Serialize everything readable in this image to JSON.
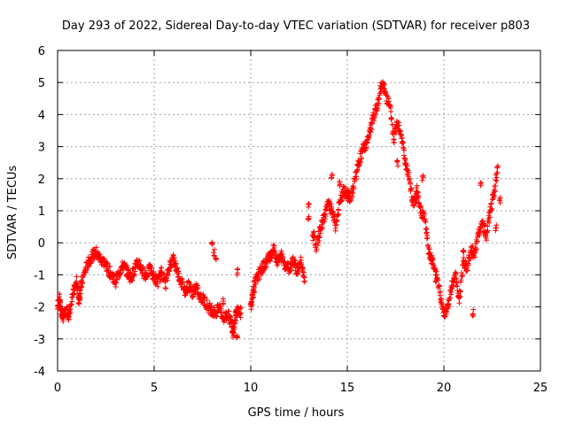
{
  "chart_data": {
    "type": "scatter",
    "title": "Day 293 of 2022, Sidereal Day-to-day VTEC variation (SDTVAR) for receiver p803",
    "xlabel": "GPS time / hours",
    "ylabel": "SDTVAR / TECUs",
    "xlim": [
      0,
      25
    ],
    "ylim": [
      -4,
      6
    ],
    "xticks": [
      0,
      5,
      10,
      15,
      20,
      25
    ],
    "yticks": [
      -4,
      -3,
      -2,
      -1,
      0,
      1,
      2,
      3,
      4,
      5,
      6
    ],
    "grid": true,
    "marker": "plus",
    "series": [
      {
        "name": "p803",
        "color": "#ff0000",
        "trace": [
          [
            0.0,
            -2.0
          ],
          [
            0.1,
            -1.7
          ],
          [
            0.2,
            -2.2
          ],
          [
            0.3,
            -2.3
          ],
          [
            0.5,
            -2.1
          ],
          [
            0.6,
            -2.3
          ],
          [
            0.8,
            -1.6
          ],
          [
            1.0,
            -1.2
          ],
          [
            1.1,
            -1.8
          ],
          [
            1.2,
            -1.4
          ],
          [
            1.4,
            -0.9
          ],
          [
            1.6,
            -0.6
          ],
          [
            1.8,
            -0.4
          ],
          [
            2.0,
            -0.3
          ],
          [
            2.2,
            -0.5
          ],
          [
            2.4,
            -0.6
          ],
          [
            2.6,
            -0.8
          ],
          [
            2.8,
            -1.0
          ],
          [
            3.0,
            -1.2
          ],
          [
            3.2,
            -0.9
          ],
          [
            3.4,
            -0.7
          ],
          [
            3.6,
            -0.9
          ],
          [
            3.8,
            -1.1
          ],
          [
            4.0,
            -0.8
          ],
          [
            4.2,
            -0.6
          ],
          [
            4.4,
            -0.9
          ],
          [
            4.6,
            -1.0
          ],
          [
            4.8,
            -0.8
          ],
          [
            5.0,
            -1.1
          ],
          [
            5.2,
            -1.2
          ],
          [
            5.4,
            -0.9
          ],
          [
            5.6,
            -1.3
          ],
          [
            5.8,
            -0.7
          ],
          [
            6.0,
            -0.5
          ],
          [
            6.2,
            -0.9
          ],
          [
            6.4,
            -1.2
          ],
          [
            6.6,
            -1.5
          ],
          [
            6.8,
            -1.3
          ],
          [
            7.0,
            -1.6
          ],
          [
            7.2,
            -1.4
          ],
          [
            7.4,
            -1.7
          ],
          [
            7.6,
            -1.8
          ],
          [
            7.8,
            -2.0
          ],
          [
            8.0,
            -2.1
          ],
          [
            8.2,
            -2.2
          ],
          [
            8.4,
            -2.0
          ],
          [
            8.6,
            -2.4
          ],
          [
            8.8,
            -2.2
          ],
          [
            9.0,
            -2.5
          ],
          [
            9.1,
            -2.8
          ],
          [
            9.2,
            -2.3
          ],
          [
            9.3,
            -2.1
          ],
          [
            9.5,
            -2.2
          ],
          [
            10.0,
            -2.0
          ],
          [
            10.1,
            -1.6
          ],
          [
            10.2,
            -1.3
          ],
          [
            10.4,
            -1.0
          ],
          [
            10.6,
            -0.8
          ],
          [
            10.8,
            -0.6
          ],
          [
            11.0,
            -0.4
          ],
          [
            11.2,
            -0.2
          ],
          [
            11.4,
            -0.6
          ],
          [
            11.6,
            -0.4
          ],
          [
            11.8,
            -0.7
          ],
          [
            12.0,
            -0.8
          ],
          [
            12.2,
            -0.5
          ],
          [
            12.4,
            -0.9
          ],
          [
            12.6,
            -0.6
          ],
          [
            12.8,
            -1.2
          ],
          [
            13.2,
            0.3
          ],
          [
            13.4,
            -0.1
          ],
          [
            13.6,
            0.4
          ],
          [
            13.8,
            0.8
          ],
          [
            14.0,
            1.2
          ],
          [
            14.2,
            1.0
          ],
          [
            14.4,
            0.5
          ],
          [
            14.6,
            1.2
          ],
          [
            14.8,
            1.6
          ],
          [
            15.0,
            1.5
          ],
          [
            15.2,
            1.4
          ],
          [
            15.4,
            2.0
          ],
          [
            15.6,
            2.5
          ],
          [
            15.8,
            2.9
          ],
          [
            16.0,
            3.1
          ],
          [
            16.2,
            3.5
          ],
          [
            16.4,
            4.0
          ],
          [
            16.6,
            4.4
          ],
          [
            16.8,
            5.0
          ],
          [
            17.0,
            4.6
          ],
          [
            17.2,
            4.3
          ],
          [
            17.4,
            3.2
          ],
          [
            17.6,
            3.8
          ],
          [
            17.8,
            3.4
          ],
          [
            18.0,
            2.5
          ],
          [
            18.2,
            2.0
          ],
          [
            18.4,
            1.2
          ],
          [
            18.6,
            1.5
          ],
          [
            18.8,
            1.0
          ],
          [
            19.0,
            0.8
          ],
          [
            19.2,
            -0.2
          ],
          [
            19.4,
            -0.6
          ],
          [
            19.6,
            -0.9
          ],
          [
            19.8,
            -1.6
          ],
          [
            20.0,
            -2.2
          ],
          [
            20.2,
            -2.0
          ],
          [
            20.4,
            -1.4
          ],
          [
            20.6,
            -1.0
          ],
          [
            20.8,
            -1.8
          ],
          [
            21.0,
            -0.6
          ],
          [
            21.2,
            -0.8
          ],
          [
            21.4,
            -0.2
          ],
          [
            21.6,
            -0.4
          ],
          [
            21.8,
            0.3
          ],
          [
            22.0,
            0.6
          ],
          [
            22.2,
            0.2
          ],
          [
            22.4,
            1.0
          ],
          [
            22.6,
            1.5
          ],
          [
            22.8,
            2.4
          ]
        ],
        "clusters": [
          [
            8.0,
            -0.1
          ],
          [
            8.1,
            -0.3
          ],
          [
            8.2,
            -0.6
          ],
          [
            8.6,
            -1.8
          ],
          [
            9.3,
            -0.9
          ],
          [
            9.3,
            -3.0
          ],
          [
            13.0,
            1.2
          ],
          [
            13.0,
            0.8
          ],
          [
            14.2,
            2.1
          ],
          [
            14.6,
            1.9
          ],
          [
            17.6,
            2.5
          ],
          [
            18.6,
            1.7
          ],
          [
            18.9,
            2.0
          ],
          [
            19.4,
            -0.5
          ],
          [
            19.6,
            -1.1
          ],
          [
            21.0,
            -0.3
          ],
          [
            21.5,
            -2.2
          ],
          [
            21.9,
            1.9
          ],
          [
            22.9,
            1.3
          ],
          [
            22.7,
            0.5
          ]
        ]
      }
    ]
  }
}
